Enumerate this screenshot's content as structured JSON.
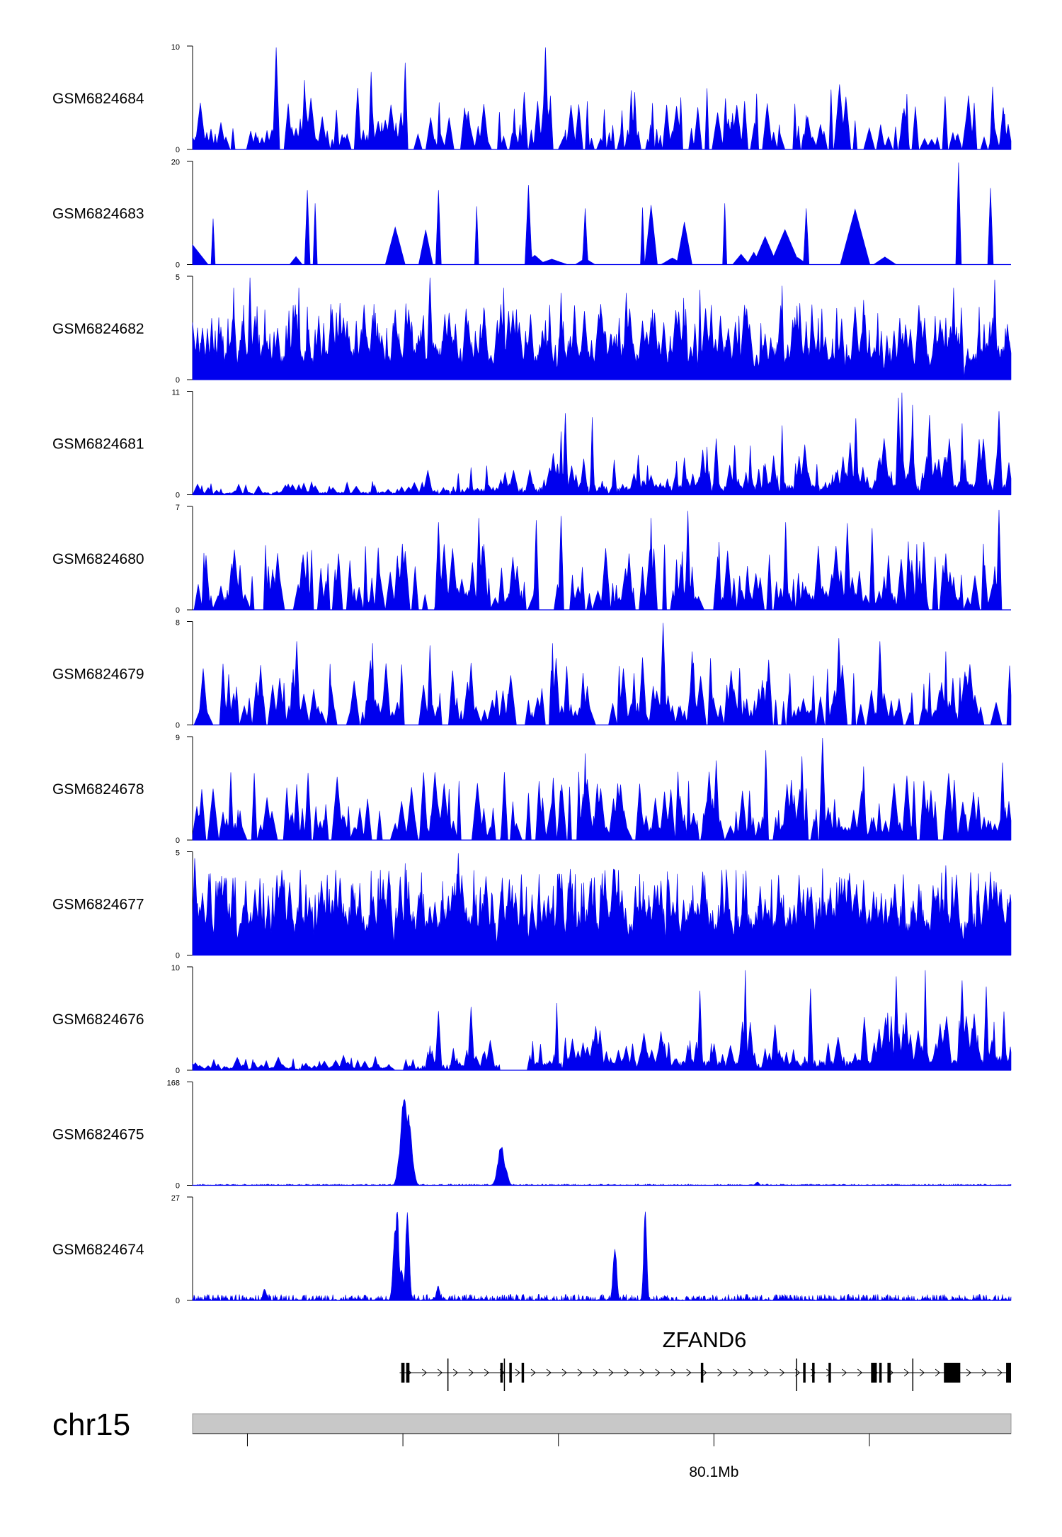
{
  "chart_data": {
    "type": "area",
    "fill_color": "#0000ee",
    "tracks": [
      {
        "name": "GSM6824684",
        "ymax": 10,
        "style": "spiky",
        "seed": 684,
        "density": 0.55,
        "base": 0.1,
        "tall": [
          [
            0.102,
            1.0
          ],
          [
            0.137,
            0.68
          ],
          [
            0.218,
            0.76
          ],
          [
            0.26,
            0.85
          ],
          [
            0.431,
            1.0
          ],
          [
            0.536,
            0.58
          ],
          [
            0.651,
            0.5
          ],
          [
            0.883,
            0.42
          ]
        ]
      },
      {
        "name": "GSM6824683",
        "ymax": 20,
        "style": "sparse",
        "seed": 683,
        "density": 0.28,
        "base": 0.05,
        "end": 0.99,
        "tall": [
          [
            0.025,
            0.45
          ],
          [
            0.14,
            0.73
          ],
          [
            0.15,
            0.6
          ],
          [
            0.3,
            0.73
          ],
          [
            0.347,
            0.57
          ],
          [
            0.41,
            0.78
          ],
          [
            0.48,
            0.55
          ],
          [
            0.55,
            0.56
          ],
          [
            0.65,
            0.6
          ],
          [
            0.75,
            0.55
          ],
          [
            0.936,
            1.0
          ],
          [
            0.975,
            0.75
          ]
        ]
      },
      {
        "name": "GSM6824682",
        "ymax": 5,
        "style": "dense",
        "seed": 682,
        "density": 0.85,
        "base": 0.2,
        "tall": [
          [
            0.05,
            0.9
          ],
          [
            0.07,
            1.0
          ],
          [
            0.13,
            0.9
          ],
          [
            0.18,
            0.75
          ],
          [
            0.29,
            1.0
          ],
          [
            0.38,
            0.9
          ],
          [
            0.45,
            0.85
          ],
          [
            0.53,
            0.85
          ],
          [
            0.6,
            0.8
          ],
          [
            0.62,
            0.88
          ],
          [
            0.72,
            0.92
          ],
          [
            0.82,
            0.78
          ],
          [
            0.93,
            0.9
          ],
          [
            0.98,
            0.98
          ]
        ]
      },
      {
        "name": "GSM6824681",
        "ymax": 11,
        "style": "rising",
        "seed": 681,
        "density": 0.75,
        "base": 0.08,
        "tall": [
          [
            0.45,
            0.62
          ],
          [
            0.455,
            0.8
          ],
          [
            0.488,
            0.76
          ],
          [
            0.64,
            0.55
          ],
          [
            0.72,
            0.68
          ],
          [
            0.81,
            0.75
          ],
          [
            0.862,
            0.95
          ],
          [
            0.867,
            1.0
          ],
          [
            0.88,
            0.88
          ],
          [
            0.9,
            0.78
          ],
          [
            0.94,
            0.7
          ],
          [
            0.985,
            0.82
          ]
        ]
      },
      {
        "name": "GSM6824680",
        "ymax": 7,
        "style": "spiky",
        "seed": 680,
        "density": 0.6,
        "base": 0.12,
        "tall": [
          [
            0.3,
            0.86
          ],
          [
            0.35,
            0.9
          ],
          [
            0.42,
            0.88
          ],
          [
            0.45,
            0.92
          ],
          [
            0.56,
            0.9
          ],
          [
            0.605,
            0.97
          ],
          [
            0.725,
            0.86
          ],
          [
            0.8,
            0.85
          ],
          [
            0.83,
            0.8
          ],
          [
            0.985,
            0.98
          ]
        ]
      },
      {
        "name": "GSM6824679",
        "ymax": 8,
        "style": "spiky",
        "seed": 679,
        "density": 0.62,
        "base": 0.12,
        "tall": [
          [
            0.127,
            0.82
          ],
          [
            0.22,
            0.8
          ],
          [
            0.29,
            0.78
          ],
          [
            0.44,
            0.8
          ],
          [
            0.575,
            1.0
          ],
          [
            0.61,
            0.72
          ],
          [
            0.79,
            0.85
          ],
          [
            0.84,
            0.82
          ],
          [
            0.92,
            0.72
          ]
        ]
      },
      {
        "name": "GSM6824678",
        "ymax": 9,
        "style": "spiky",
        "seed": 678,
        "density": 0.6,
        "base": 0.12,
        "tall": [
          [
            0.48,
            0.85
          ],
          [
            0.64,
            0.78
          ],
          [
            0.7,
            0.88
          ],
          [
            0.745,
            0.82
          ],
          [
            0.77,
            1.0
          ],
          [
            0.82,
            0.72
          ],
          [
            0.99,
            0.76
          ]
        ]
      },
      {
        "name": "GSM6824677",
        "ymax": 5,
        "style": "dense",
        "seed": 677,
        "density": 0.85,
        "base": 0.3,
        "tall": [
          [
            0.003,
            0.95
          ],
          [
            0.26,
            0.9
          ],
          [
            0.325,
            1.0
          ],
          [
            0.5,
            0.8
          ],
          [
            0.58,
            0.82
          ],
          [
            0.77,
            0.85
          ],
          [
            0.92,
            0.88
          ],
          [
            0.96,
            0.8
          ]
        ]
      },
      {
        "name": "GSM6824676",
        "ymax": 10,
        "style": "rising",
        "seed": 676,
        "density": 0.75,
        "base": 0.1,
        "gaps": [
          [
            0.245,
            0.26
          ],
          [
            0.375,
            0.41
          ]
        ],
        "tall": [
          [
            0.3,
            0.58
          ],
          [
            0.34,
            0.62
          ],
          [
            0.445,
            0.66
          ],
          [
            0.62,
            0.78
          ],
          [
            0.675,
            0.98
          ],
          [
            0.755,
            0.8
          ],
          [
            0.86,
            0.92
          ],
          [
            0.895,
            0.98
          ],
          [
            0.94,
            0.88
          ],
          [
            0.97,
            0.82
          ]
        ]
      },
      {
        "name": "GSM6824675",
        "ymax": 168,
        "style": "peaks",
        "seed": 675,
        "noise": 0.012,
        "peaks": [
          [
            0.2537,
            0.003,
            0.36
          ],
          [
            0.2585,
            0.004,
            0.95
          ],
          [
            0.2635,
            0.004,
            0.72
          ],
          [
            0.268,
            0.003,
            0.25
          ],
          [
            0.377,
            0.004,
            0.4
          ],
          [
            0.382,
            0.003,
            0.18
          ],
          [
            0.69,
            0.002,
            0.035
          ]
        ]
      },
      {
        "name": "GSM6824674",
        "ymax": 27,
        "style": "peaks",
        "seed": 674,
        "noise": 0.06,
        "peaks": [
          [
            0.2475,
            0.0025,
            0.7
          ],
          [
            0.25,
            0.002,
            0.95
          ],
          [
            0.255,
            0.003,
            0.3
          ],
          [
            0.2625,
            0.0022,
            0.93
          ],
          [
            0.3,
            0.002,
            0.15
          ],
          [
            0.516,
            0.0022,
            0.55
          ],
          [
            0.553,
            0.0018,
            0.96
          ],
          [
            0.088,
            0.002,
            0.12
          ]
        ]
      }
    ],
    "gene": {
      "name": "ZFAND6",
      "start": 0.253,
      "end": 1.0,
      "exons": [
        [
          0.255,
          0.259
        ],
        [
          0.261,
          0.265
        ],
        [
          0.376,
          0.379
        ],
        [
          0.387,
          0.39
        ],
        [
          0.402,
          0.405
        ],
        [
          0.621,
          0.624
        ],
        [
          0.746,
          0.749
        ],
        [
          0.757,
          0.76
        ],
        [
          0.777,
          0.78
        ],
        [
          0.829,
          0.836
        ],
        [
          0.839,
          0.842
        ],
        [
          0.849,
          0.853
        ],
        [
          0.918,
          0.938
        ],
        [
          0.994,
          1.0
        ]
      ],
      "thin": [
        [
          0.312,
          0.35
        ],
        [
          0.381,
          0.41
        ],
        [
          0.738,
          0.77
        ],
        [
          0.88,
          0.99
        ]
      ]
    },
    "axis": {
      "chromosome": "chr15",
      "tick_positions": [
        0.067,
        0.257,
        0.447,
        0.637,
        0.827
      ],
      "tick_label": "80.1Mb",
      "tick_label_position": 0.637
    }
  }
}
